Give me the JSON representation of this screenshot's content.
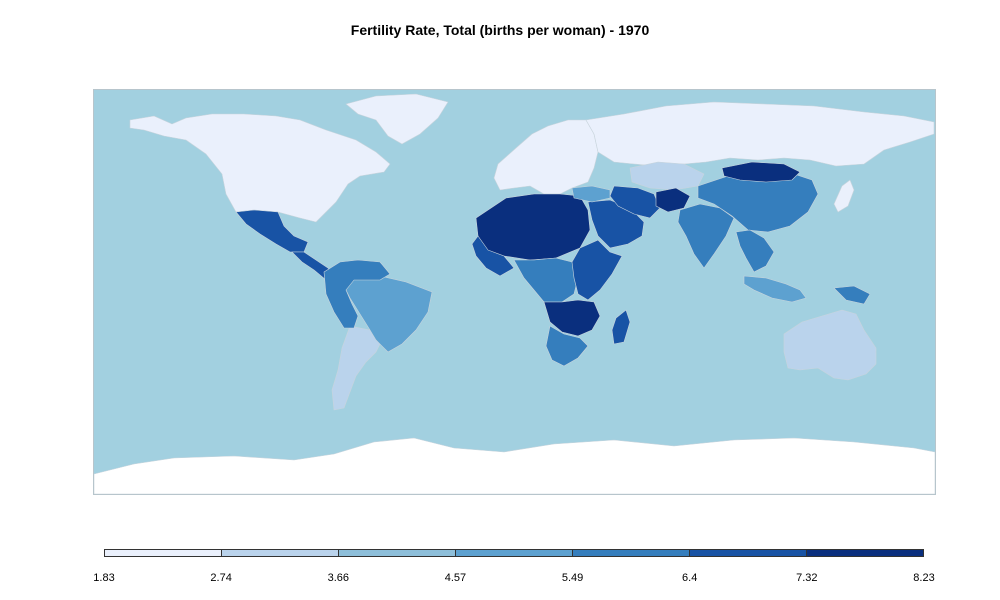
{
  "title": "Fertility Rate, Total (births per woman) -  1970",
  "colors": {
    "ocean": "#a2d0e0",
    "no_data": "#ffffff",
    "border": "#c8d4dc"
  },
  "chart_data": {
    "type": "choropleth",
    "title": "Fertility Rate, Total (births per woman) -  1970",
    "legend_placement": "bottom",
    "legend_ticks": [
      "1.83",
      "2.74",
      "3.66",
      "4.57",
      "5.49",
      "6.4",
      "7.32",
      "8.23"
    ],
    "bins": [
      {
        "range": [
          1.83,
          2.74
        ],
        "color": "#eaf0fc"
      },
      {
        "range": [
          2.74,
          3.66
        ],
        "color": "#bad3ec"
      },
      {
        "range": [
          3.66,
          4.57
        ],
        "color": "#8ebfda"
      },
      {
        "range": [
          4.57,
          5.49
        ],
        "color": "#5da1d0"
      },
      {
        "range": [
          5.49,
          6.4
        ],
        "color": "#357ebd"
      },
      {
        "range": [
          6.4,
          7.32
        ],
        "color": "#1853a5"
      },
      {
        "range": [
          7.32,
          8.23
        ],
        "color": "#0a2f7e"
      }
    ],
    "regions": [
      {
        "name": "North America",
        "bin": 0
      },
      {
        "name": "Greenland",
        "bin": 0
      },
      {
        "name": "Europe",
        "bin": 0
      },
      {
        "name": "Russia",
        "bin": 0
      },
      {
        "name": "Japan",
        "bin": 0
      },
      {
        "name": "Antarctica",
        "bin": null
      },
      {
        "name": "Australia",
        "bin": 1
      },
      {
        "name": "Argentina",
        "bin": 1
      },
      {
        "name": "Kazakhstan",
        "bin": 1
      },
      {
        "name": "Mexico",
        "bin": 5
      },
      {
        "name": "Central America",
        "bin": 5
      },
      {
        "name": "Brazil",
        "bin": 3
      },
      {
        "name": "Andean South America",
        "bin": 4
      },
      {
        "name": "Sahara / Sahel",
        "bin": 6
      },
      {
        "name": "West Africa",
        "bin": 5
      },
      {
        "name": "Central Africa",
        "bin": 4
      },
      {
        "name": "East Africa",
        "bin": 5
      },
      {
        "name": "Southeast Africa",
        "bin": 6
      },
      {
        "name": "South Africa",
        "bin": 4
      },
      {
        "name": "Madagascar",
        "bin": 5
      },
      {
        "name": "Arabian Peninsula",
        "bin": 5
      },
      {
        "name": "Iran",
        "bin": 5
      },
      {
        "name": "Afghanistan",
        "bin": 6
      },
      {
        "name": "India",
        "bin": 4
      },
      {
        "name": "China",
        "bin": 4
      },
      {
        "name": "Mongolia",
        "bin": 6
      },
      {
        "name": "Southeast Asia",
        "bin": 4
      },
      {
        "name": "Indonesia",
        "bin": 3
      },
      {
        "name": "Papua New Guinea",
        "bin": 4
      },
      {
        "name": "Turkey",
        "bin": 3
      }
    ]
  }
}
